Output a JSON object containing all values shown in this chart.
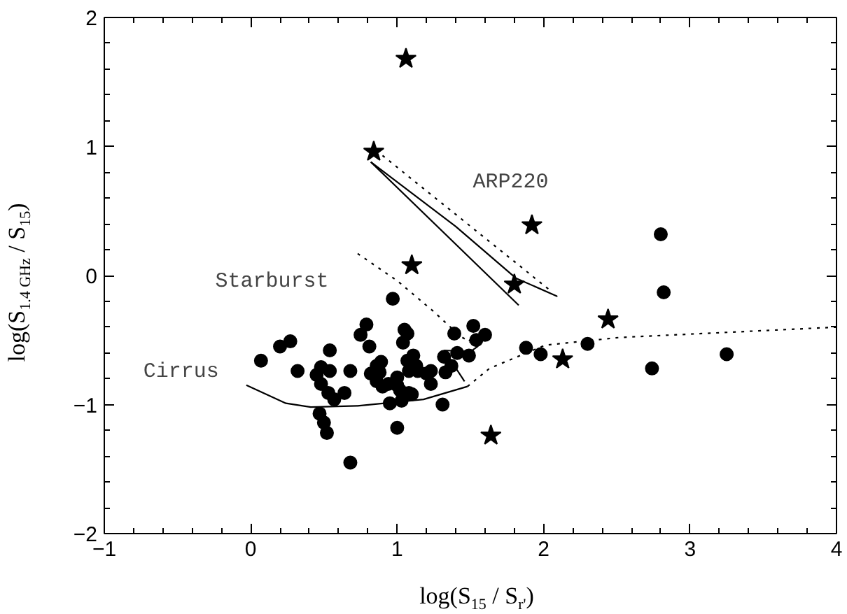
{
  "chart_data": {
    "type": "scatter",
    "xlabel": "log(S$_{15}$ / S$_{r'}$)",
    "ylabel": "log(S$_{1.4 GHz}$ / S$_{15}$)",
    "xlim": [
      -1,
      4
    ],
    "ylim": [
      -2,
      2
    ],
    "xticks": [
      -1,
      0,
      1,
      2,
      3,
      4
    ],
    "yticks": [
      -2,
      -1,
      0,
      1,
      2
    ],
    "grid": false,
    "annotations": [
      "ARP220",
      "Starburst",
      "Cirrus"
    ],
    "series": [
      {
        "marker": "circle",
        "color": "#000000",
        "x": [
          0.97,
          2.82,
          2.8,
          0.79,
          0.75,
          0.81,
          1.05,
          1.07,
          1.04,
          1.39,
          1.52,
          1.6,
          1.54,
          1.41,
          1.49,
          1.32,
          1.37,
          1.33,
          1.88,
          1.98,
          2.3,
          3.25,
          2.74,
          0.07,
          0.2,
          0.27,
          0.32,
          0.54,
          0.48,
          0.45,
          0.54,
          0.48,
          0.53,
          0.57,
          0.64,
          0.68,
          0.82,
          0.88,
          0.89,
          0.86,
          0.86,
          0.9,
          0.94,
          1.0,
          1.0,
          1.02,
          1.07,
          1.11,
          1.08,
          1.13,
          1.14,
          1.2,
          1.23,
          1.23,
          1.08,
          1.1,
          1.03,
          0.95,
          1.31,
          0.47,
          0.5,
          0.52,
          1.0,
          0.68
        ],
        "values": [
          -0.18,
          -0.13,
          0.32,
          -0.38,
          -0.46,
          -0.55,
          -0.42,
          -0.45,
          -0.52,
          -0.45,
          -0.39,
          -0.46,
          -0.5,
          -0.6,
          -0.62,
          -0.63,
          -0.7,
          -0.75,
          -0.56,
          -0.61,
          -0.53,
          -0.61,
          -0.72,
          -0.66,
          -0.55,
          -0.51,
          -0.74,
          -0.58,
          -0.71,
          -0.77,
          -0.74,
          -0.84,
          -0.91,
          -0.96,
          -0.91,
          -0.74,
          -0.76,
          -0.75,
          -0.67,
          -0.7,
          -0.82,
          -0.86,
          -0.84,
          -0.79,
          -0.85,
          -0.89,
          -0.66,
          -0.62,
          -0.74,
          -0.7,
          -0.74,
          -0.76,
          -0.74,
          -0.84,
          -0.91,
          -0.92,
          -0.97,
          -0.99,
          -1.0,
          -1.07,
          -1.14,
          -1.22,
          -1.18,
          -1.45
        ]
      },
      {
        "marker": "star",
        "color": "#000000",
        "x": [
          1.06,
          0.84,
          1.92,
          1.1,
          1.8,
          2.44,
          2.13,
          1.64
        ],
        "values": [
          1.68,
          0.96,
          0.39,
          0.08,
          -0.07,
          -0.34,
          -0.65,
          -1.24
        ]
      },
      {
        "type": "line",
        "line_style": "solid",
        "color": "#000000",
        "x": [
          -0.03,
          0.24,
          0.41,
          0.73,
          1.18,
          1.48
        ],
        "values": [
          -0.85,
          -0.99,
          -1.02,
          -1.01,
          -0.96,
          -0.86
        ]
      },
      {
        "type": "line",
        "line_style": "dotted",
        "color": "#000000",
        "x": [
          1.48,
          1.63,
          2.01,
          2.52,
          4.0
        ],
        "values": [
          -0.86,
          -0.72,
          -0.54,
          -0.48,
          -0.4
        ]
      },
      {
        "type": "line",
        "line_style": "dotted",
        "color": "#000000",
        "x": [
          0.73,
          1.0,
          1.25,
          1.43,
          1.55
        ],
        "values": [
          0.17,
          -0.04,
          -0.28,
          -0.47,
          -0.55
        ]
      },
      {
        "type": "line",
        "line_style": "solid",
        "color": "#000000",
        "x": [
          1.32,
          1.5,
          1.55,
          1.49
        ],
        "values": [
          -0.58,
          -0.59,
          -0.55,
          -0.5
        ]
      },
      {
        "type": "line",
        "line_style": "solid",
        "color": "#000000",
        "x": [
          1.35,
          1.46
        ],
        "values": [
          -0.63,
          -0.82
        ]
      },
      {
        "type": "line",
        "line_style": "solid",
        "color": "#000000",
        "x": [
          0.82,
          1.4,
          1.81,
          2.09,
          1.99
        ],
        "values": [
          0.88,
          0.38,
          -0.02,
          -0.16,
          -0.11
        ]
      },
      {
        "type": "line",
        "line_style": "solid",
        "color": "#000000",
        "x": [
          0.82,
          1.83
        ],
        "values": [
          0.88,
          -0.23
        ]
      },
      {
        "type": "line",
        "line_style": "dotted",
        "color": "#000000",
        "x": [
          0.9,
          2.05
        ],
        "values": [
          0.93,
          -0.12
        ]
      }
    ]
  }
}
